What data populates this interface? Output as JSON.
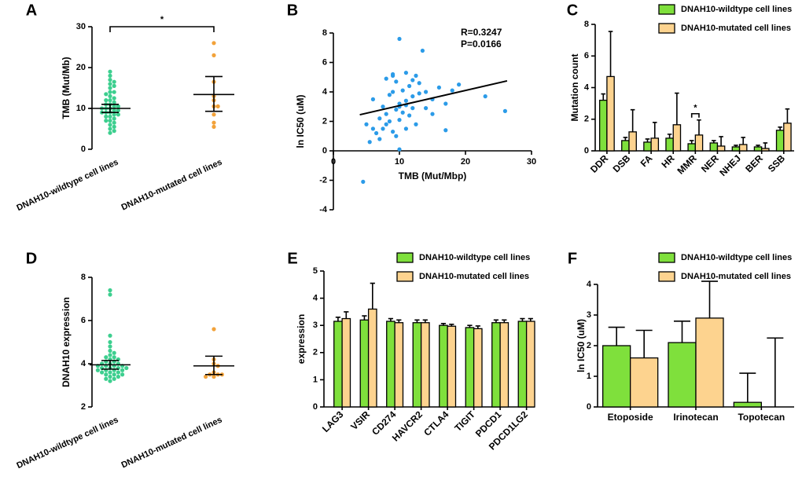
{
  "chart_data": [
    {
      "type": "dot",
      "label": "A",
      "ylabel": "TMB (Mut/Mb)",
      "categories": [
        "DNAH10-wildtype cell lines",
        "DNAH10-mutated cell lines"
      ],
      "colors": [
        "#3dcf8f",
        "#f2a23a"
      ],
      "points": [
        [
          19,
          18,
          17,
          16.5,
          16,
          15.5,
          15,
          14,
          14,
          13.5,
          13,
          12.5,
          12,
          12,
          11.5,
          11,
          11,
          10.5,
          10.5,
          10,
          10,
          10,
          9.5,
          9.5,
          9,
          9,
          9,
          8.5,
          8.5,
          8,
          8,
          7.5,
          7,
          7,
          6.5,
          6,
          5.5,
          5,
          4.5,
          4
        ],
        [
          26,
          23,
          16.5,
          13,
          12,
          10.5,
          10.5,
          8.5,
          6.5,
          5.5
        ]
      ],
      "means": [
        10,
        13.4
      ],
      "ci_low": [
        9,
        9.3
      ],
      "ci_high": [
        11,
        17.8
      ],
      "ylim": [
        0,
        30
      ],
      "yticks": [
        0,
        10,
        20,
        30
      ],
      "annotation": "*"
    },
    {
      "type": "scatter",
      "label": "B",
      "xlabel": "TMB (Mut/Mbp)",
      "ylabel": "ln IC50 (uM)",
      "color": "#2b9be8",
      "x": [
        4.5,
        5,
        5.5,
        6,
        6,
        6.5,
        7,
        7,
        7.5,
        7.5,
        8,
        8,
        8,
        8.5,
        8.5,
        9,
        9,
        9,
        9,
        9.5,
        9.5,
        9.5,
        10,
        10,
        10,
        10,
        10,
        10.5,
        10.5,
        11,
        11,
        11,
        11,
        11.5,
        11.5,
        12,
        12,
        12,
        12.5,
        12.5,
        13,
        13,
        13.5,
        14,
        14,
        15,
        15,
        16,
        17,
        17,
        18,
        19,
        23,
        26
      ],
      "y": [
        -2.1,
        1.8,
        0.6,
        1.5,
        3.5,
        1.2,
        2.2,
        0.8,
        3.0,
        1.5,
        4.9,
        2.5,
        1.8,
        3.8,
        2.0,
        5.2,
        5.1,
        4.0,
        1.3,
        4.7,
        2.8,
        1.0,
        7.6,
        3.2,
        2.1,
        0.1,
        3.0,
        4.1,
        2.6,
        5.3,
        3.4,
        3.1,
        1.5,
        4.4,
        2.4,
        4.8,
        3.7,
        2.9,
        5.1,
        1.8,
        4.6,
        3.9,
        6.8,
        2.9,
        4.0,
        3.5,
        2.5,
        4.3,
        1.4,
        3.2,
        4.1,
        4.5,
        3.7,
        2.7
      ],
      "fit": {
        "x": [
          4,
          26.3
        ],
        "y": [
          2.45,
          4.75
        ]
      },
      "xlim": [
        0,
        30
      ],
      "xticks": [
        0,
        10,
        20,
        30
      ],
      "ylim": [
        -4,
        8
      ],
      "yticks": [
        -4,
        -2,
        0,
        2,
        4,
        6,
        8
      ],
      "annotations": [
        "R=0.3247",
        "P=0.0166"
      ]
    },
    {
      "type": "bar",
      "label": "C",
      "ylabel": "Mutation count",
      "categories": [
        "DDR",
        "DSB",
        "FA",
        "HR",
        "MMR",
        "NER",
        "NHEJ",
        "BER",
        "SSB"
      ],
      "series": [
        {
          "name": "DNAH10-wildtype cell lines",
          "color": "#7fe03c",
          "values": [
            3.2,
            0.65,
            0.55,
            0.8,
            0.45,
            0.5,
            0.25,
            0.25,
            1.3
          ],
          "errors": [
            0.4,
            0.2,
            0.2,
            0.25,
            0.2,
            0.15,
            0.1,
            0.1,
            0.2
          ]
        },
        {
          "name": "DNAH10-mutated cell lines",
          "color": "#fdd38f",
          "values": [
            4.7,
            1.2,
            0.8,
            1.65,
            1.0,
            0.3,
            0.4,
            0.15,
            1.75
          ],
          "errors": [
            2.85,
            1.4,
            1.0,
            2.0,
            0.95,
            0.6,
            0.45,
            0.35,
            0.9
          ]
        }
      ],
      "ylim": [
        0,
        8
      ],
      "yticks": [
        0,
        2,
        4,
        6,
        8
      ],
      "annotation": {
        "text": "*",
        "category": "MMR"
      }
    },
    {
      "type": "dot",
      "label": "D",
      "ylabel": "DNAH10 expression",
      "categories": [
        "DNAH10-wildtype cell lines",
        "DNAH10-mutated cell lines"
      ],
      "colors": [
        "#3dcf8f",
        "#f2a23a"
      ],
      "points": [
        [
          7.4,
          7.2,
          5.3,
          5.0,
          4.8,
          4.6,
          4.5,
          4.4,
          4.3,
          4.3,
          4.2,
          4.2,
          4.1,
          4.1,
          4.0,
          4.0,
          4.0,
          3.9,
          3.9,
          3.9,
          3.9,
          3.8,
          3.8,
          3.8,
          3.8,
          3.7,
          3.7,
          3.7,
          3.7,
          3.6,
          3.6,
          3.6,
          3.5,
          3.5,
          3.5,
          3.4,
          3.4,
          3.3,
          3.3,
          3.2
        ],
        [
          5.6,
          4.2,
          4.0,
          3.9,
          3.6,
          3.5,
          3.5,
          3.5,
          3.4,
          3.4
        ]
      ],
      "means": [
        3.95,
        3.9
      ],
      "ci_low": [
        3.75,
        3.5
      ],
      "ci_high": [
        4.15,
        4.35
      ],
      "ylim": [
        2,
        8
      ],
      "yticks": [
        2,
        4,
        6,
        8
      ]
    },
    {
      "type": "bar",
      "label": "E",
      "ylabel": "expression",
      "categories": [
        "LAG3",
        "VSIR",
        "CD274",
        "HAVCR2",
        "CTLA4",
        "TIGIT",
        "PDCD1",
        "PDCD1LG2"
      ],
      "series": [
        {
          "name": "DNAH10-wildtype cell lines",
          "color": "#7fe03c",
          "values": [
            3.15,
            3.2,
            3.15,
            3.1,
            3.0,
            2.92,
            3.1,
            3.15
          ],
          "errors": [
            0.15,
            0.15,
            0.1,
            0.1,
            0.07,
            0.08,
            0.1,
            0.1
          ]
        },
        {
          "name": "DNAH10-mutated cell lines",
          "color": "#fdd38f",
          "values": [
            3.25,
            3.6,
            3.1,
            3.1,
            2.97,
            2.88,
            3.1,
            3.15
          ],
          "errors": [
            0.25,
            0.95,
            0.1,
            0.1,
            0.07,
            0.1,
            0.1,
            0.1
          ]
        }
      ],
      "ylim": [
        0,
        5
      ],
      "yticks": [
        0,
        1,
        2,
        3,
        4,
        5
      ]
    },
    {
      "type": "bar",
      "label": "F",
      "ylabel": "ln IC50 (uM)",
      "categories": [
        "Etoposide",
        "Irinotecan",
        "Topotecan"
      ],
      "series": [
        {
          "name": "DNAH10-wildtype cell lines",
          "color": "#7fe03c",
          "values": [
            2.0,
            2.1,
            0.15
          ],
          "errors": [
            0.6,
            0.7,
            0.95
          ]
        },
        {
          "name": "DNAH10-mutated cell lines",
          "color": "#fdd38f",
          "values": [
            1.6,
            2.9,
            0
          ],
          "errors": [
            0.9,
            1.2,
            2.25
          ]
        }
      ],
      "ylim": [
        0,
        4
      ],
      "yticks": [
        0,
        1,
        2,
        3,
        4
      ]
    }
  ]
}
